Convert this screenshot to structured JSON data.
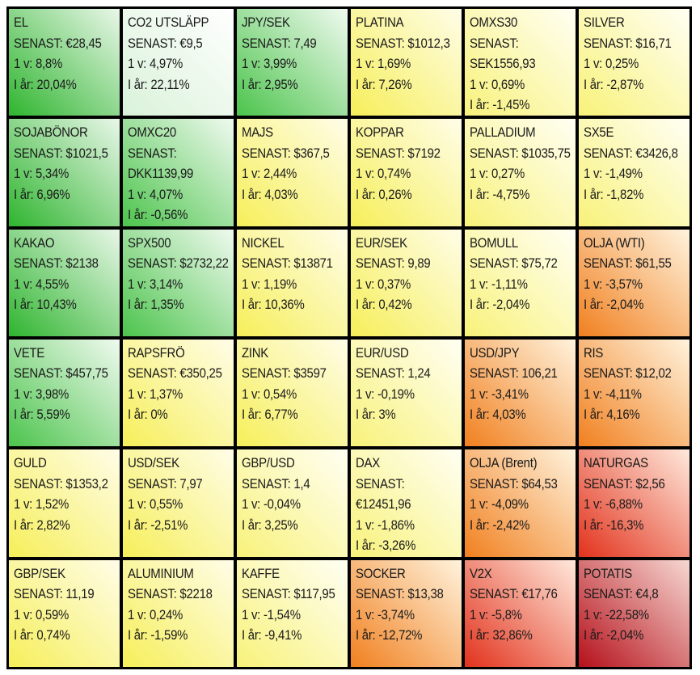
{
  "tiles": [
    {
      "lines": [
        "EL",
        "SENAST: €28,45",
        "1 v: 8,8%",
        "I år: 20,04%"
      ],
      "color": "green-strong"
    },
    {
      "lines": [
        "CO2 UTSLÄPP",
        "SENAST: €9,5",
        "1 v: 4,97%",
        "I år: 22,11%"
      ],
      "color": "green-faint"
    },
    {
      "lines": [
        "JPY/SEK",
        "SENAST: 7,49",
        "1 v: 3,99%",
        "I år: 2,95%"
      ],
      "color": "green-mid"
    },
    {
      "lines": [
        "PLATINA",
        "SENAST: $1012,3",
        "1 v: 1,69%",
        "I år: 7,26%"
      ],
      "color": "yellow"
    },
    {
      "lines": [
        "OMXS30",
        "SENAST:",
        "SEK1556,93",
        "1 v: 0,69%",
        "I år: -1,45%"
      ],
      "color": "yellow-light"
    },
    {
      "lines": [
        "SILVER",
        "SENAST: $16,71",
        "1 v: 0,25%",
        "I år: -2,87%"
      ],
      "color": "yellow-light"
    },
    {
      "lines": [
        "SOJABÖNOR",
        "SENAST: $1021,5",
        "1 v: 5,34%",
        "I år: 6,96%"
      ],
      "color": "green-strong"
    },
    {
      "lines": [
        "OMXC20",
        "SENAST:",
        "DKK1139,99",
        "1 v: 4,07%",
        "I år: -0,56%"
      ],
      "color": "green-mid"
    },
    {
      "lines": [
        "MAJS",
        "SENAST: $367,5",
        "1 v: 2,44%",
        "I år: 4,03%"
      ],
      "color": "yellow"
    },
    {
      "lines": [
        "KOPPAR",
        "SENAST: $7192",
        "1 v: 0,74%",
        "I år: 0,26%"
      ],
      "color": "yellow"
    },
    {
      "lines": [
        "PALLADIUM",
        "SENAST: $1035,75",
        "1 v: 0,27%",
        "I år: -4,75%"
      ],
      "color": "yellow-light"
    },
    {
      "lines": [
        "SX5E",
        "SENAST: €3426,8",
        "1 v: -1,49%",
        "I år: -1,82%"
      ],
      "color": "yellow-light"
    },
    {
      "lines": [
        "KAKAO",
        "SENAST: $2138",
        "1 v: 4,55%",
        "I år: 10,43%"
      ],
      "color": "green-strong"
    },
    {
      "lines": [
        "SPX500",
        "SENAST: $2732,22",
        "1 v: 3,14%",
        "I år: 1,35%"
      ],
      "color": "green-mid"
    },
    {
      "lines": [
        "NICKEL",
        "SENAST: $13871",
        "1 v: 1,19%",
        "I år: 10,36%"
      ],
      "color": "yellow"
    },
    {
      "lines": [
        "EUR/SEK",
        "SENAST: 9,89",
        "1 v: 0,37%",
        "I år: 0,42%"
      ],
      "color": "yellow"
    },
    {
      "lines": [
        "BOMULL",
        "SENAST: $75,72",
        "1 v: -1,11%",
        "I år: -2,04%"
      ],
      "color": "yellow-light"
    },
    {
      "lines": [
        "OLJA (WTI)",
        "SENAST: $61,55",
        "1 v: -3,57%",
        "I år: -2,04%"
      ],
      "color": "orange"
    },
    {
      "lines": [
        "VETE",
        "SENAST: $457,75",
        "1 v: 3,98%",
        "I år: 5,59%"
      ],
      "color": "green-mid"
    },
    {
      "lines": [
        "RAPSFRÖ",
        "SENAST: €350,25",
        "1 v: 1,37%",
        "I år: 0%"
      ],
      "color": "yellow"
    },
    {
      "lines": [
        "ZINK",
        "SENAST: $3597",
        "1 v: 0,54%",
        "I år: 6,77%"
      ],
      "color": "yellow"
    },
    {
      "lines": [
        "EUR/USD",
        "SENAST: 1,24",
        "1 v: -0,19%",
        "I år: 3%"
      ],
      "color": "yellow-light"
    },
    {
      "lines": [
        "USD/JPY",
        "SENAST: 106,21",
        "1 v: -3,41%",
        "I år: 4,03%"
      ],
      "color": "orange"
    },
    {
      "lines": [
        "RIS",
        "SENAST: $12,02",
        "1 v: -4,11%",
        "I år: 4,16%"
      ],
      "color": "orange"
    },
    {
      "lines": [
        "GULD",
        "SENAST: $1353,2",
        "1 v: 1,52%",
        "I år: 2,82%"
      ],
      "color": "yellow"
    },
    {
      "lines": [
        "USD/SEK",
        "SENAST: 7,97",
        "1 v: 0,55%",
        "I år: -2,51%"
      ],
      "color": "yellow"
    },
    {
      "lines": [
        "GBP/USD",
        "SENAST: 1,4",
        "1 v: -0,04%",
        "I år: 3,25%"
      ],
      "color": "yellow-light"
    },
    {
      "lines": [
        "DAX",
        "SENAST:",
        "€12451,96",
        "1 v: -1,86%",
        "I år: -3,26%"
      ],
      "color": "yellow-light"
    },
    {
      "lines": [
        "OLJA (Brent)",
        "SENAST: $64,53",
        "1 v: -4,09%",
        "I år: -2,42%"
      ],
      "color": "orange"
    },
    {
      "lines": [
        "NATURGAS",
        "SENAST: $2,56",
        "1 v: -6,88%",
        "I år: -16,3%"
      ],
      "color": "red-orange"
    },
    {
      "lines": [
        "GBP/SEK",
        "SENAST: 11,19",
        "1 v: 0,59%",
        "I år: 0,74%"
      ],
      "color": "yellow"
    },
    {
      "lines": [
        "ALUMINIUM",
        "SENAST: $2218",
        "1 v: 0,24%",
        "I år: -1,59%"
      ],
      "color": "yellow"
    },
    {
      "lines": [
        "KAFFE",
        "SENAST: $117,95",
        "1 v: -1,54%",
        "I år: -9,41%"
      ],
      "color": "yellow-light"
    },
    {
      "lines": [
        "SOCKER",
        "SENAST: $13,38",
        "1 v: -3,74%",
        "I år: -12,72%"
      ],
      "color": "orange"
    },
    {
      "lines": [
        "V2X",
        "SENAST: €17,76",
        "1 v: -5,8%",
        "I år: 32,86%"
      ],
      "color": "red-orange"
    },
    {
      "lines": [
        "POTATIS",
        "SENAST: €4,8",
        "1 v: -22,58%",
        "I år: -2,04%"
      ],
      "color": "red"
    }
  ],
  "palette": {
    "green-strong": [
      "#2fb52f",
      "#e9f7e9"
    ],
    "green-mid": [
      "#4cc44c",
      "#f0faf0"
    ],
    "green-faint": [
      "#d9f2d9",
      "#ffffff"
    ],
    "yellow": [
      "#f6ef5a",
      "#fffde8"
    ],
    "yellow-light": [
      "#f8f27a",
      "#fffff4"
    ],
    "orange": [
      "#f1801f",
      "#fff3dd"
    ],
    "red-orange": [
      "#e2321c",
      "#ffe9dc"
    ],
    "red": [
      "#b5101a",
      "#f7d8d2"
    ]
  }
}
